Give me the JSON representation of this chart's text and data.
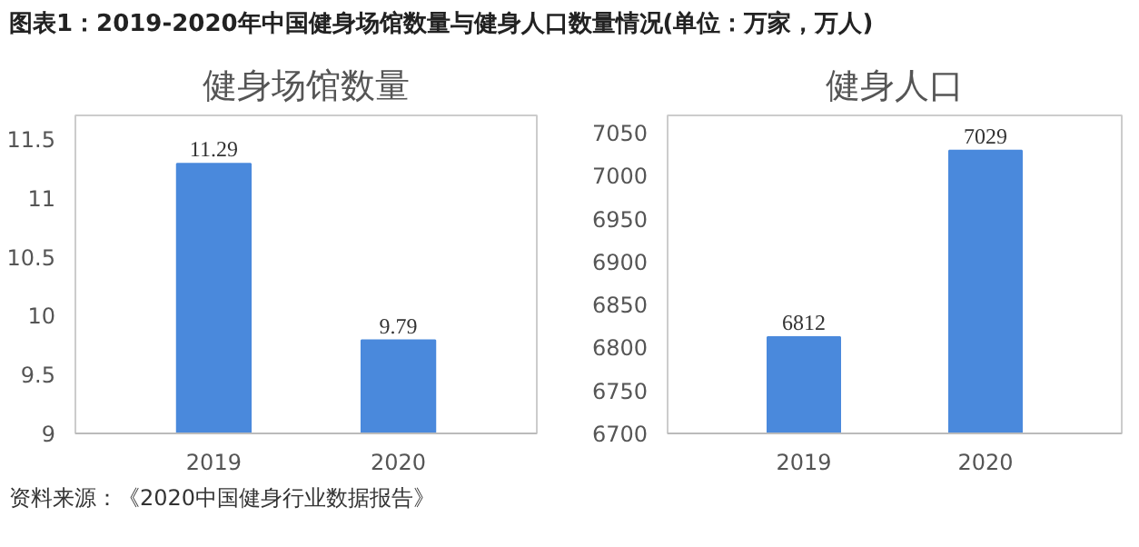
{
  "chart_data": [
    {
      "type": "bar",
      "title": "健身场馆数量",
      "categories": [
        "2019",
        "2020"
      ],
      "values": [
        11.29,
        9.79
      ],
      "color": "#4a89dc",
      "ylim": [
        9,
        11.7
      ],
      "yticks": [
        9,
        9.5,
        10,
        10.5,
        11,
        11.5
      ],
      "data_labels": true,
      "grid": false,
      "annotations": [
        "图表1：2019-2020年中国健身场馆数量与健身人口数量情况(单位：万家，万人)"
      ]
    },
    {
      "type": "bar",
      "title": "健身人口",
      "categories": [
        "2019",
        "2020"
      ],
      "values": [
        6812,
        7029
      ],
      "color": "#4a89dc",
      "ylim": [
        6700,
        7070
      ],
      "yticks": [
        6700,
        6750,
        6800,
        6850,
        6900,
        6950,
        7000,
        7050
      ],
      "data_labels": true,
      "grid": false,
      "annotations": [
        "资料来源：《2020中国健身行业数据报告》"
      ]
    }
  ]
}
